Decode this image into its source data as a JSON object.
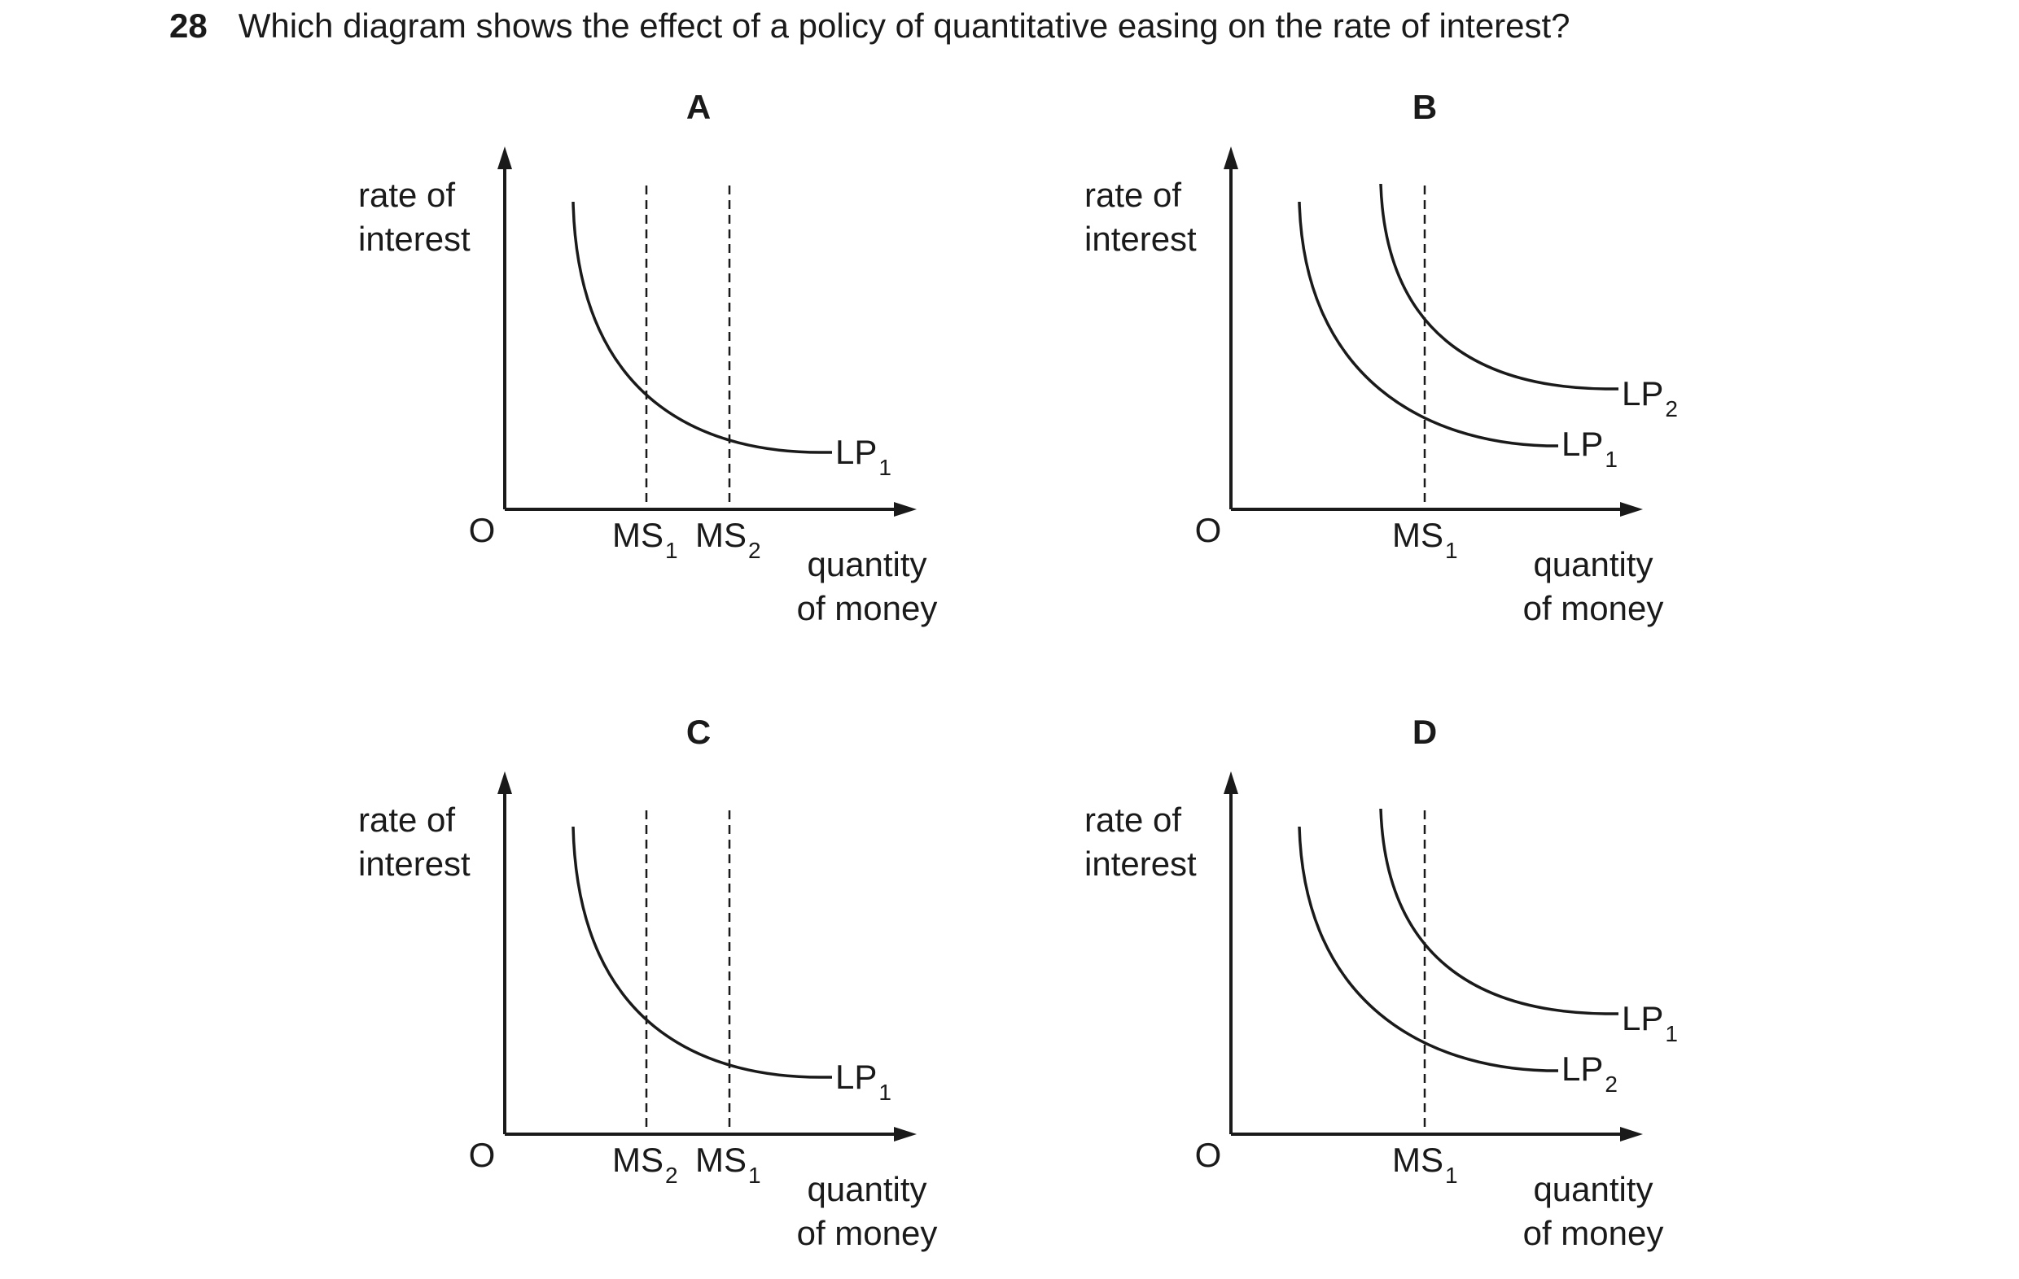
{
  "question": {
    "number": "28",
    "text": "Which diagram shows the effect of a policy of quantitative easing on the rate of interest?"
  },
  "panels": [
    {
      "id": "A",
      "letter": "A",
      "ylabel": [
        "rate of",
        "interest"
      ],
      "xlabel": [
        "quantity",
        "of money"
      ],
      "origin": "O",
      "curves": [
        {
          "base": "LP",
          "sub": "1",
          "position": "low"
        }
      ],
      "supply_lines": [
        {
          "base": "MS",
          "sub": "1",
          "position": "left"
        },
        {
          "base": "MS",
          "sub": "2",
          "position": "right"
        }
      ]
    },
    {
      "id": "B",
      "letter": "B",
      "ylabel": [
        "rate of",
        "interest"
      ],
      "xlabel": [
        "quantity",
        "of money"
      ],
      "origin": "O",
      "curves": [
        {
          "base": "LP",
          "sub": "2",
          "position": "high"
        },
        {
          "base": "LP",
          "sub": "1",
          "position": "low"
        }
      ],
      "supply_lines": [
        {
          "base": "MS",
          "sub": "1",
          "position": "middle"
        }
      ]
    },
    {
      "id": "C",
      "letter": "C",
      "ylabel": [
        "rate of",
        "interest"
      ],
      "xlabel": [
        "quantity",
        "of money"
      ],
      "origin": "O",
      "curves": [
        {
          "base": "LP",
          "sub": "1",
          "position": "low"
        }
      ],
      "supply_lines": [
        {
          "base": "MS",
          "sub": "2",
          "position": "left"
        },
        {
          "base": "MS",
          "sub": "1",
          "position": "right"
        }
      ]
    },
    {
      "id": "D",
      "letter": "D",
      "ylabel": [
        "rate of",
        "interest"
      ],
      "xlabel": [
        "quantity",
        "of money"
      ],
      "origin": "O",
      "curves": [
        {
          "base": "LP",
          "sub": "1",
          "position": "high"
        },
        {
          "base": "LP",
          "sub": "2",
          "position": "low"
        }
      ],
      "supply_lines": [
        {
          "base": "MS",
          "sub": "1",
          "position": "middle"
        }
      ]
    }
  ]
}
